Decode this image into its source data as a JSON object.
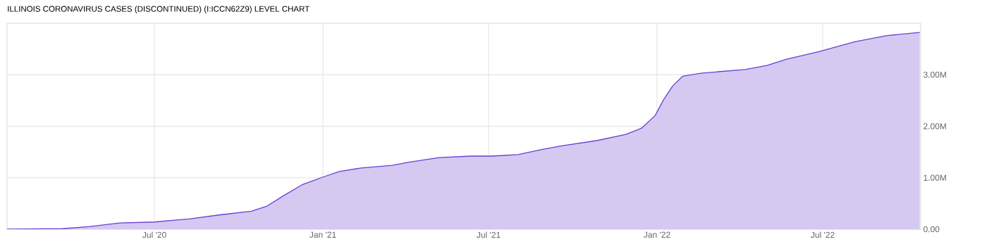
{
  "chart_data": {
    "type": "area",
    "title": "ILLINOIS CORONAVIRUS CASES (DISCONTINUED) (I:ICCN62Z9) LEVEL CHART",
    "x": [
      "2020-01-22",
      "2020-03-23",
      "2020-04-20",
      "2020-05-24",
      "2020-07-01",
      "2020-08-08",
      "2020-09-11",
      "2020-10-15",
      "2020-11-01",
      "2020-11-19",
      "2020-12-10",
      "2020-12-30",
      "2021-01-19",
      "2021-02-12",
      "2021-03-18",
      "2021-04-04",
      "2021-05-08",
      "2021-06-12",
      "2021-07-05",
      "2021-08-02",
      "2021-08-26",
      "2021-09-19",
      "2021-10-27",
      "2021-11-28",
      "2021-12-15",
      "2021-12-30",
      "2022-01-08",
      "2022-01-18",
      "2022-01-29",
      "2022-02-18",
      "2022-04-07",
      "2022-05-01",
      "2022-05-22",
      "2022-06-27",
      "2022-08-05",
      "2022-09-09",
      "2022-10-15"
    ],
    "values": [
      0,
      10000,
      50000,
      120000,
      140000,
      200000,
      280000,
      350000,
      450000,
      650000,
      870000,
      1000000,
      1120000,
      1190000,
      1240000,
      1300000,
      1390000,
      1420000,
      1420000,
      1450000,
      1540000,
      1620000,
      1720000,
      1840000,
      1960000,
      2210000,
      2510000,
      2780000,
      2970000,
      3030000,
      3100000,
      3180000,
      3300000,
      3450000,
      3640000,
      3760000,
      3820000
    ],
    "color": "#6a3fd0",
    "xlim": [
      "2020-01-22",
      "2022-10-16"
    ],
    "ylim": [
      0,
      4000000
    ],
    "xticks": [
      {
        "value": "2020-07-01",
        "label": "Jul '20"
      },
      {
        "value": "2021-01-01",
        "label": "Jan '21"
      },
      {
        "value": "2021-07-01",
        "label": "Jul '21"
      },
      {
        "value": "2022-01-01",
        "label": "Jan '22"
      },
      {
        "value": "2022-07-01",
        "label": "Jul '22"
      }
    ],
    "yticks": [
      {
        "value": 0,
        "label": "0.00"
      },
      {
        "value": 1000000,
        "label": "1.00M"
      },
      {
        "value": 2000000,
        "label": "2.00M"
      },
      {
        "value": 3000000,
        "label": "3.00M"
      }
    ],
    "grid": true
  }
}
